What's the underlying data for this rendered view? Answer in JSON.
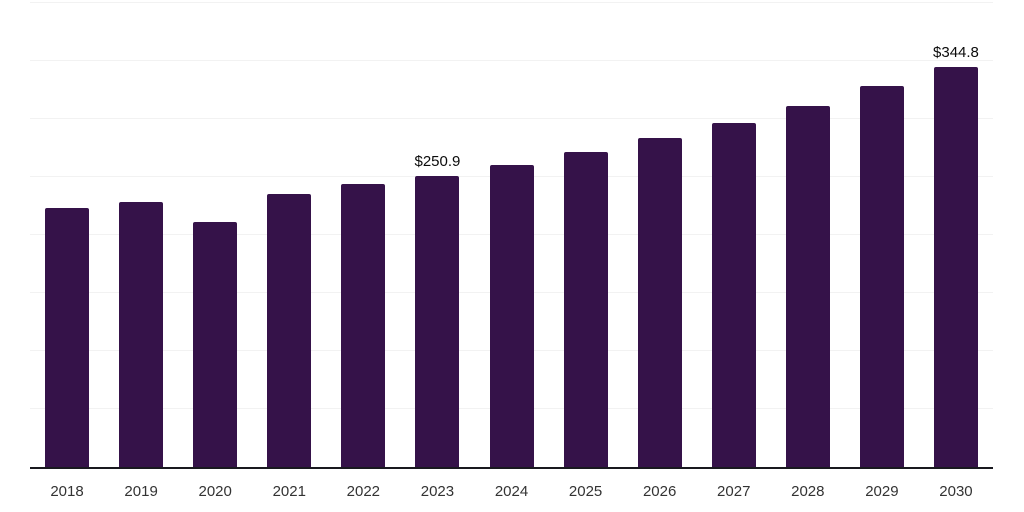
{
  "chart_data": {
    "type": "bar",
    "title": "",
    "xlabel": "",
    "ylabel": "",
    "categories": [
      "2018",
      "2019",
      "2020",
      "2021",
      "2022",
      "2023",
      "2024",
      "2025",
      "2026",
      "2027",
      "2028",
      "2029",
      "2030"
    ],
    "values": [
      223.2,
      228.8,
      211.3,
      235.7,
      243.7,
      250.9,
      260.6,
      271.5,
      284.0,
      296.5,
      311.0,
      328.2,
      344.8
    ],
    "data_labels": {
      "2023": "$250.9",
      "2030": "$344.8"
    },
    "ylim": [
      0,
      400
    ],
    "grid_interval": 50,
    "grid": true,
    "legend": false,
    "colors": {
      "bar": "#351249",
      "gridline": "#f2f2f2",
      "axis_line": "#19191f",
      "tick_label": "#333333",
      "data_label": "#0b0b0b",
      "background": "#ffffff"
    }
  }
}
